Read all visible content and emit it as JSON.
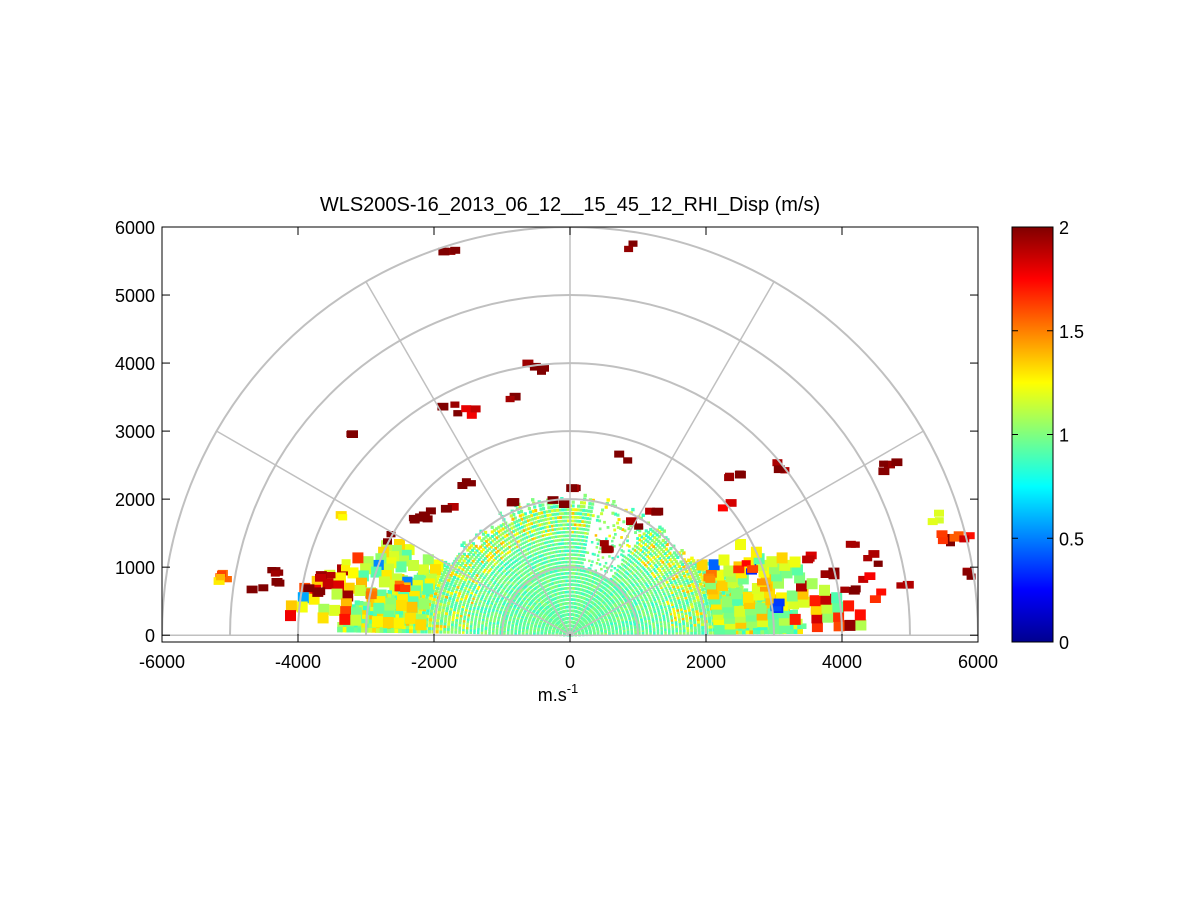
{
  "chart_data": {
    "type": "heatmap",
    "subtype": "polar-rhi",
    "title": "WLS200S-16_2013_06_12__15_45_12_RHI_Disp (m/s)",
    "xlabel": "m.s",
    "xlabel_sup": "-1",
    "ylabel": "",
    "xlim": [
      -6000,
      6000
    ],
    "ylim": [
      -100,
      6000
    ],
    "xticks": [
      -6000,
      -4000,
      -2000,
      0,
      2000,
      4000,
      6000
    ],
    "yticks": [
      0,
      1000,
      2000,
      3000,
      4000,
      5000,
      6000
    ],
    "xtick_labels": [
      "-6000",
      "-4000",
      "-2000",
      "0",
      "2000",
      "4000",
      "6000"
    ],
    "ytick_labels": [
      "0",
      "1000",
      "2000",
      "3000",
      "4000",
      "5000",
      "6000"
    ],
    "polar_grid": {
      "rings": [
        1000,
        2000,
        3000,
        4000,
        5000,
        6000
      ],
      "spoke_angles_deg": [
        0,
        30,
        60,
        90,
        120,
        150,
        180
      ]
    },
    "colorbar": {
      "min": 0,
      "max": 2,
      "ticks": [
        0,
        0.5,
        1,
        1.5,
        2
      ],
      "tick_labels": [
        "0",
        "0.5",
        "1",
        "1.5",
        "2"
      ],
      "colormap": "jet"
    },
    "colormap_stops": [
      "#00008f",
      "#0000ff",
      "#00ffff",
      "#ffff00",
      "#ff0000",
      "#800000"
    ],
    "dense_region": {
      "description_units": "m",
      "max_range_center": 2000,
      "max_range_low_elev": 3600,
      "typical_value": 0.95
    },
    "clusters": [
      {
        "x": -5150,
        "y": 850,
        "v": 1.6
      },
      {
        "x": -5250,
        "y": 780,
        "v": 1.3
      },
      {
        "x": -4400,
        "y": 950,
        "v": 2.0
      },
      {
        "x": -4200,
        "y": 750,
        "v": 2.0
      },
      {
        "x": -3800,
        "y": 650,
        "v": 2.0
      },
      {
        "x": -3600,
        "y": 800,
        "v": 1.9
      },
      {
        "x": -3350,
        "y": 1700,
        "v": 1.3
      },
      {
        "x": -3200,
        "y": 2900,
        "v": 2.0
      },
      {
        "x": -2700,
        "y": 1400,
        "v": 2.0
      },
      {
        "x": -2300,
        "y": 1700,
        "v": 2.0
      },
      {
        "x": -2050,
        "y": 1750,
        "v": 2.0
      },
      {
        "x": -1750,
        "y": 1800,
        "v": 2.0
      },
      {
        "x": -1500,
        "y": 2200,
        "v": 2.0
      },
      {
        "x": -1750,
        "y": 3300,
        "v": 2.0
      },
      {
        "x": -1400,
        "y": 3250,
        "v": 1.8
      },
      {
        "x": -800,
        "y": 3450,
        "v": 2.0
      },
      {
        "x": -500,
        "y": 3900,
        "v": 2.0
      },
      {
        "x": -1800,
        "y": 5570,
        "v": 2.0
      },
      {
        "x": 950,
        "y": 5670,
        "v": 2.0
      },
      {
        "x": 850,
        "y": 2600,
        "v": 2.0
      },
      {
        "x": 2400,
        "y": 2300,
        "v": 2.0
      },
      {
        "x": 3100,
        "y": 2450,
        "v": 2.0
      },
      {
        "x": 4700,
        "y": 2450,
        "v": 2.0
      },
      {
        "x": 2350,
        "y": 1900,
        "v": 1.8
      },
      {
        "x": 3500,
        "y": 1100,
        "v": 1.9
      },
      {
        "x": 3800,
        "y": 900,
        "v": 2.0
      },
      {
        "x": 4100,
        "y": 600,
        "v": 2.0
      },
      {
        "x": 4250,
        "y": 1300,
        "v": 2.0
      },
      {
        "x": 4500,
        "y": 1100,
        "v": 2.0
      },
      {
        "x": 4400,
        "y": 850,
        "v": 1.8
      },
      {
        "x": 4500,
        "y": 550,
        "v": 1.7
      },
      {
        "x": 4850,
        "y": 650,
        "v": 1.9
      },
      {
        "x": 5400,
        "y": 1700,
        "v": 1.2
      },
      {
        "x": 5500,
        "y": 1350,
        "v": 2.0
      },
      {
        "x": 5600,
        "y": 1400,
        "v": 1.6
      },
      {
        "x": 5800,
        "y": 1400,
        "v": 1.8
      },
      {
        "x": 5950,
        "y": 850,
        "v": 2.0
      },
      {
        "x": 2000,
        "y": 850,
        "v": 1.5
      },
      {
        "x": 2600,
        "y": 1000,
        "v": 1.7
      },
      {
        "x": 2900,
        "y": 700,
        "v": 1.4
      },
      {
        "x": 3000,
        "y": 400,
        "v": 0.4
      },
      {
        "x": 500,
        "y": 1300,
        "v": 1.9
      },
      {
        "x": 1000,
        "y": 1600,
        "v": 2.0
      },
      {
        "x": 1200,
        "y": 1850,
        "v": 2.0
      },
      {
        "x": -150,
        "y": 1950,
        "v": 2.0
      },
      {
        "x": 0,
        "y": 2100,
        "v": 2.0
      },
      {
        "x": -900,
        "y": 1950,
        "v": 2.0
      },
      {
        "x": -2900,
        "y": 550,
        "v": 1.5
      },
      {
        "x": -3300,
        "y": 1000,
        "v": 1.2
      },
      {
        "x": -2500,
        "y": 700,
        "v": 1.6
      },
      {
        "x": -4600,
        "y": 650,
        "v": 2.0
      }
    ]
  }
}
